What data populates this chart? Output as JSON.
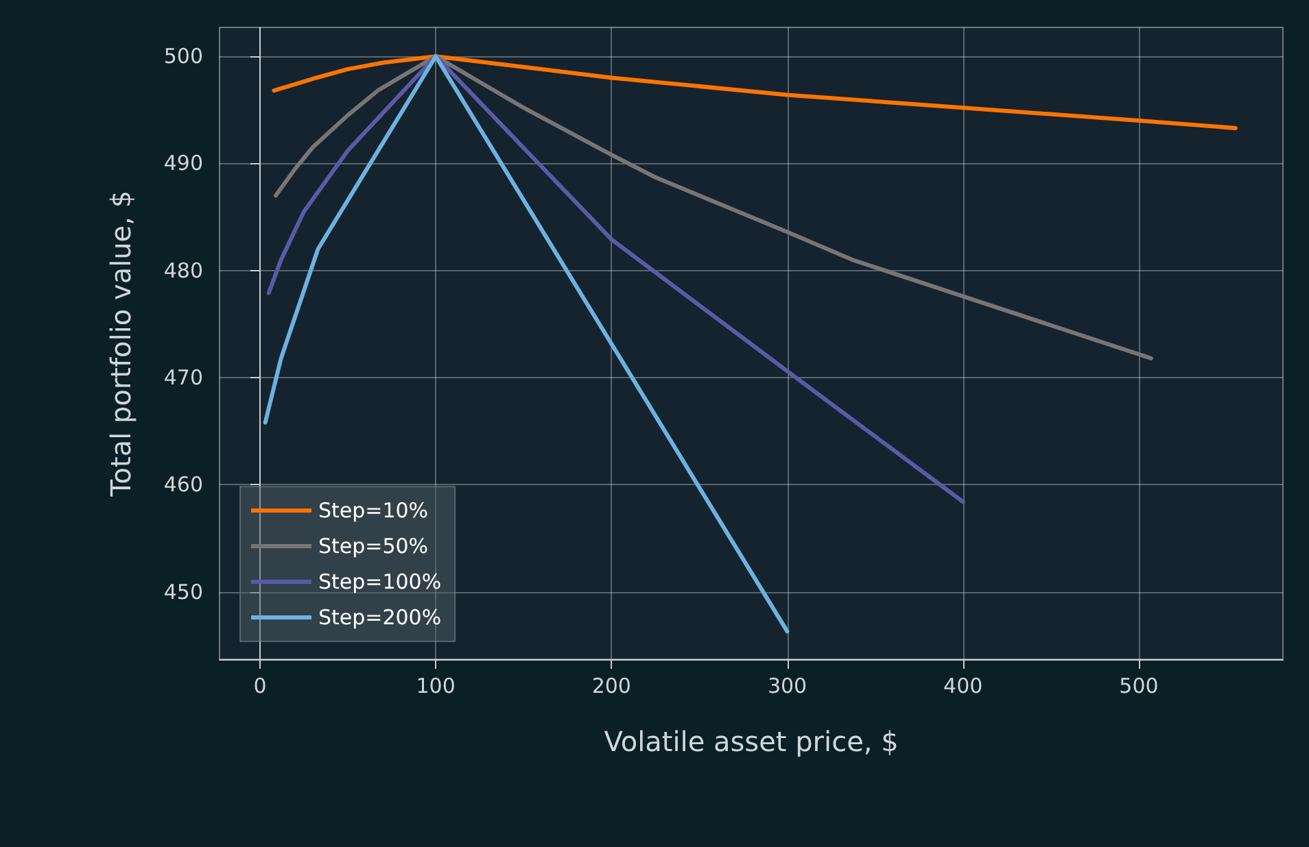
{
  "chart_data": {
    "type": "line",
    "xlabel": "Volatile asset price, $",
    "ylabel": "Total portfolio value, $",
    "xlim": [
      -23,
      582
    ],
    "xticks": [
      0,
      100,
      200,
      300,
      400,
      500
    ],
    "ylim": [
      443.7,
      502.7
    ],
    "yticks": [
      450,
      460,
      470,
      480,
      490,
      500
    ],
    "grid": true,
    "legend": "bottom left",
    "marker": "none",
    "line_style": "solid",
    "series": [
      {
        "name": "Step=10%",
        "color": "#ff7400",
        "x": [
          8,
          20,
          30,
          50,
          70,
          100,
          150,
          200,
          300,
          400,
          500,
          555
        ],
        "values": [
          496.8,
          497.4,
          497.9,
          498.8,
          499.4,
          500,
          499.0,
          498.0,
          496.4,
          495.2,
          494.0,
          493.3
        ]
      },
      {
        "name": "Step=50%",
        "color": "#767676",
        "x": [
          9,
          20,
          30,
          50,
          67,
          100,
          150,
          200,
          225,
          300,
          337,
          507
        ],
        "values": [
          487.0,
          489.5,
          491.5,
          494.5,
          496.8,
          500,
          495.2,
          490.8,
          488.7,
          483.6,
          481.0,
          471.8
        ]
      },
      {
        "name": "Step=100%",
        "color": "#5a5aa6",
        "x": [
          5,
          12,
          25,
          50,
          100,
          200,
          300,
          400
        ],
        "values": [
          477.9,
          481.0,
          485.5,
          491.2,
          500,
          482.9,
          470.6,
          458.4
        ]
      },
      {
        "name": "Step=200%",
        "color": "#6cb2e0",
        "x": [
          3,
          12,
          33,
          100,
          300
        ],
        "values": [
          465.8,
          471.8,
          482.0,
          500,
          446.3
        ]
      }
    ]
  }
}
